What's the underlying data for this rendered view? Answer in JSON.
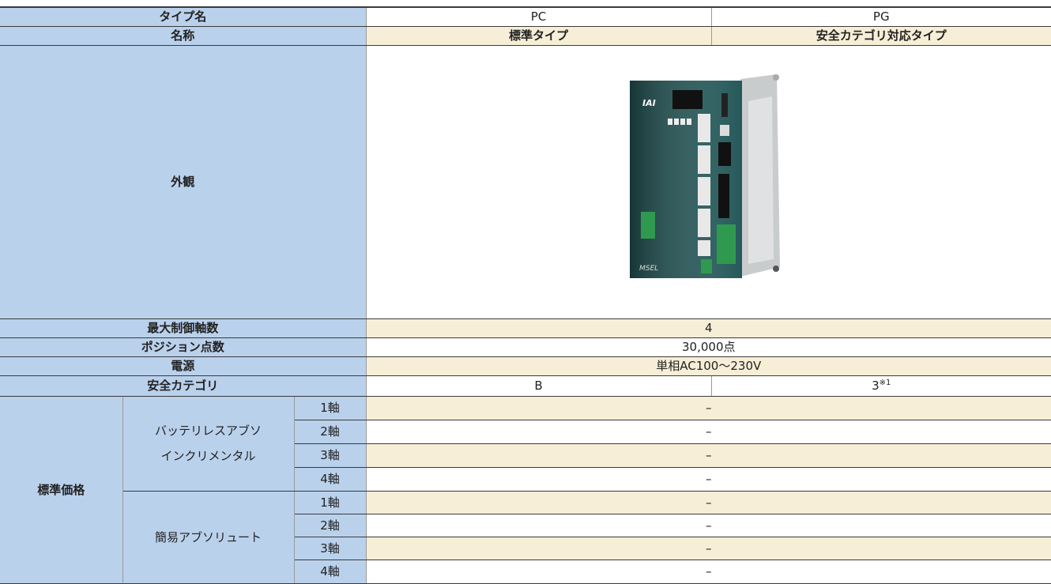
{
  "table": {
    "type_row": {
      "label": "タイプ名",
      "cols": [
        "PC",
        "PG"
      ]
    },
    "name_row": {
      "label": "名称",
      "cols": [
        "標準タイプ",
        "安全カテゴリ対応タイプ"
      ]
    },
    "appearance_row": {
      "label": "外観"
    },
    "spec_rows": [
      {
        "label": "最大制御軸数",
        "value": "4"
      },
      {
        "label": "ポジション点数",
        "value": "30,000点"
      },
      {
        "label": "電源",
        "value": "単相AC100～230V"
      }
    ],
    "safety_row": {
      "label": "安全カテゴリ",
      "cols": [
        "B",
        "3"
      ],
      "note": "※1"
    },
    "price": {
      "label": "標準価格",
      "groups": [
        {
          "lines": [
            "バッテリレスアブソ",
            "インクリメンタル"
          ],
          "rows": [
            {
              "axis": "1軸",
              "value": "–"
            },
            {
              "axis": "2軸",
              "value": "–"
            },
            {
              "axis": "3軸",
              "value": "–"
            },
            {
              "axis": "4軸",
              "value": "–"
            }
          ]
        },
        {
          "lines": [
            "簡易アブソリュート"
          ],
          "rows": [
            {
              "axis": "1軸",
              "value": "–"
            },
            {
              "axis": "2軸",
              "value": "–"
            },
            {
              "axis": "3軸",
              "value": "–"
            },
            {
              "axis": "4軸",
              "value": "–"
            }
          ]
        }
      ]
    }
  }
}
